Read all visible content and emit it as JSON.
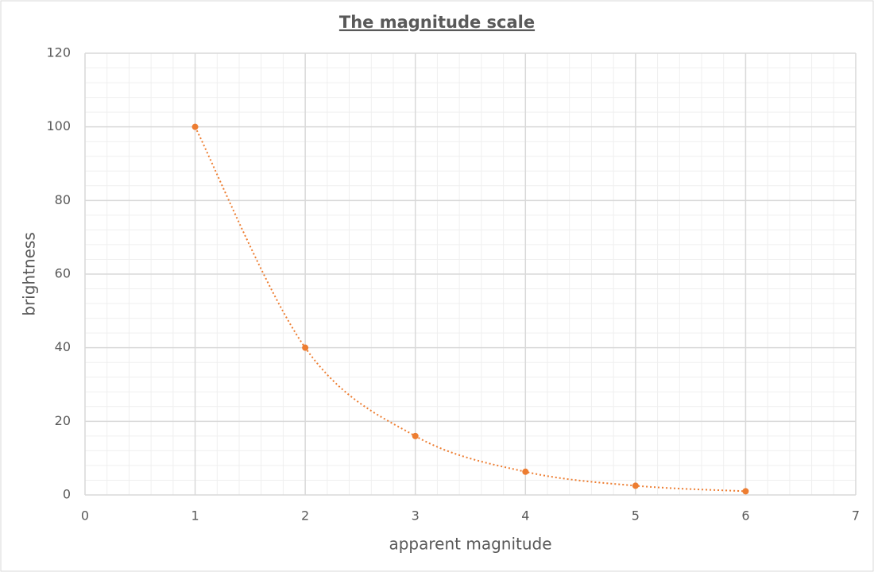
{
  "chart_data": {
    "type": "scatter",
    "title": "The magnitude scale",
    "xlabel": "apparent magnitude",
    "ylabel": "brightness",
    "series": [
      {
        "name": "brightness",
        "color": "#ed7d31",
        "x": [
          1,
          2,
          3,
          4,
          5,
          6
        ],
        "values": [
          100,
          40,
          16,
          6.3,
          2.5,
          1
        ]
      }
    ],
    "xlim": [
      0,
      7
    ],
    "xticks": [
      0,
      1,
      2,
      3,
      4,
      5,
      6,
      7
    ],
    "ylim": [
      0,
      120
    ],
    "yticks": [
      0,
      20,
      40,
      60,
      80,
      100,
      120
    ],
    "grid": true,
    "minor_grid": true,
    "line_style": "smooth-dotted"
  }
}
